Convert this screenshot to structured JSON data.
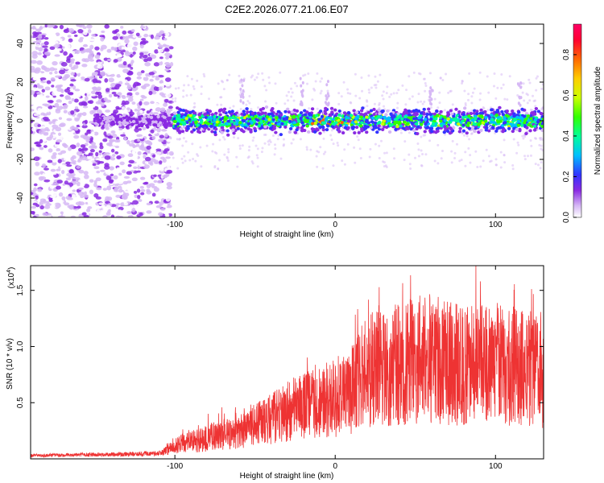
{
  "title": "C2E2.2026.077.21.06.E07",
  "chart_data": [
    {
      "type": "heatmap",
      "title": "C2E2.2026.077.21.06.E07",
      "xlabel": "Height of straight line (km)",
      "ylabel": "Frequency (Hz)",
      "xlim": [
        -190,
        130
      ],
      "ylim": [
        -50,
        50
      ],
      "xticks": [
        -100,
        0,
        100
      ],
      "yticks": [
        -40,
        -20,
        0,
        20,
        40
      ],
      "colorbar": {
        "label": "Normalized spectral amplitude",
        "range": [
          0,
          0.95
        ],
        "ticks": [
          0.0,
          0.2,
          0.4,
          0.6,
          0.8
        ],
        "tick_labels": [
          "0.0",
          "0.2",
          "0.4",
          "0.6",
          "0.8"
        ]
      },
      "description_regions": {
        "noise_region_x": [
          -190,
          -102
        ],
        "signal_band_center_hz": 0,
        "signal_band_halfwidth_hz": 8
      }
    },
    {
      "type": "line",
      "xlabel": "Height of straight line (km)",
      "ylabel": "SNR (10 * v/v)",
      "y_multiplier_label": "(x10",
      "y_multiplier_exp": "4",
      "y_multiplier_close": ")",
      "xlim": [
        -190,
        130
      ],
      "ylim": [
        0,
        1.72
      ],
      "xticks": [
        -100,
        0,
        100
      ],
      "yticks": [
        0.5,
        1.0,
        1.5
      ],
      "ytick_labels": [
        "0.5",
        "1.0",
        "1.5"
      ],
      "color": "#ee3333",
      "envelope": [
        {
          "x": -190,
          "y": 0.03
        },
        {
          "x": -150,
          "y": 0.04
        },
        {
          "x": -110,
          "y": 0.05
        },
        {
          "x": -100,
          "y": 0.12
        },
        {
          "x": -80,
          "y": 0.18
        },
        {
          "x": -60,
          "y": 0.26
        },
        {
          "x": -40,
          "y": 0.35
        },
        {
          "x": -25,
          "y": 0.45
        },
        {
          "x": -10,
          "y": 0.5
        },
        {
          "x": 0,
          "y": 0.55
        },
        {
          "x": 10,
          "y": 0.6
        },
        {
          "x": 20,
          "y": 0.8
        },
        {
          "x": 40,
          "y": 0.85
        },
        {
          "x": 60,
          "y": 0.9
        },
        {
          "x": 80,
          "y": 0.82
        },
        {
          "x": 100,
          "y": 0.85
        },
        {
          "x": 130,
          "y": 0.78
        }
      ]
    }
  ],
  "tick_labels_x": [
    "-100",
    "0",
    "100"
  ],
  "tick_labels_y_top": [
    "40",
    "20",
    "0",
    "-20",
    "-40"
  ]
}
